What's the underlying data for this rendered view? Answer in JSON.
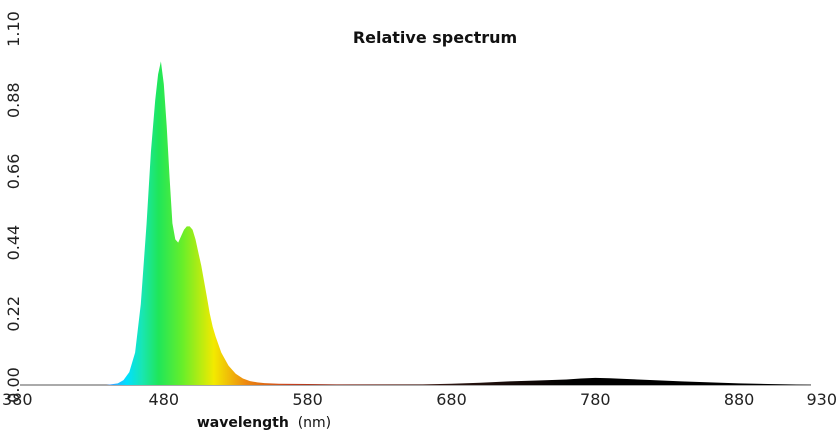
{
  "chart_data": {
    "type": "area",
    "title": "Relative spectrum",
    "xlabel_main": "wavelength",
    "xlabel_unit": "(nm)",
    "ylabel": "",
    "xlim": [
      380,
      930
    ],
    "ylim": [
      0,
      1.1
    ],
    "x_ticks": [
      380,
      480,
      580,
      680,
      780,
      880,
      930
    ],
    "y_ticks": [
      "0.00",
      "0.22",
      "0.44",
      "0.66",
      "0.88",
      "1.10"
    ],
    "grid": false,
    "fill": "wavelength-color gradient",
    "series": [
      {
        "x": [
          440,
          448,
          452,
          456,
          460,
          464,
          468,
          471,
          474,
          476,
          478,
          480,
          482,
          484,
          486,
          488,
          490,
          492,
          494,
          496,
          498,
          500,
          502,
          504,
          506,
          508,
          510,
          512,
          514,
          516,
          520,
          525,
          530,
          535,
          540,
          545,
          550,
          560,
          580,
          600,
          620,
          640,
          660,
          680,
          700,
          720,
          740,
          760,
          770,
          780,
          790,
          800,
          820,
          840,
          860,
          880,
          900,
          930
        ],
        "y": [
          0.0,
          0.005,
          0.015,
          0.04,
          0.1,
          0.25,
          0.5,
          0.72,
          0.88,
          0.96,
          1.0,
          0.93,
          0.8,
          0.64,
          0.5,
          0.45,
          0.44,
          0.46,
          0.48,
          0.49,
          0.49,
          0.48,
          0.45,
          0.41,
          0.37,
          0.32,
          0.27,
          0.22,
          0.18,
          0.15,
          0.1,
          0.06,
          0.035,
          0.02,
          0.012,
          0.008,
          0.006,
          0.004,
          0.003,
          0.002,
          0.002,
          0.002,
          0.002,
          0.004,
          0.007,
          0.011,
          0.014,
          0.017,
          0.02,
          0.022,
          0.021,
          0.019,
          0.015,
          0.011,
          0.008,
          0.005,
          0.003,
          0.001
        ]
      }
    ]
  }
}
